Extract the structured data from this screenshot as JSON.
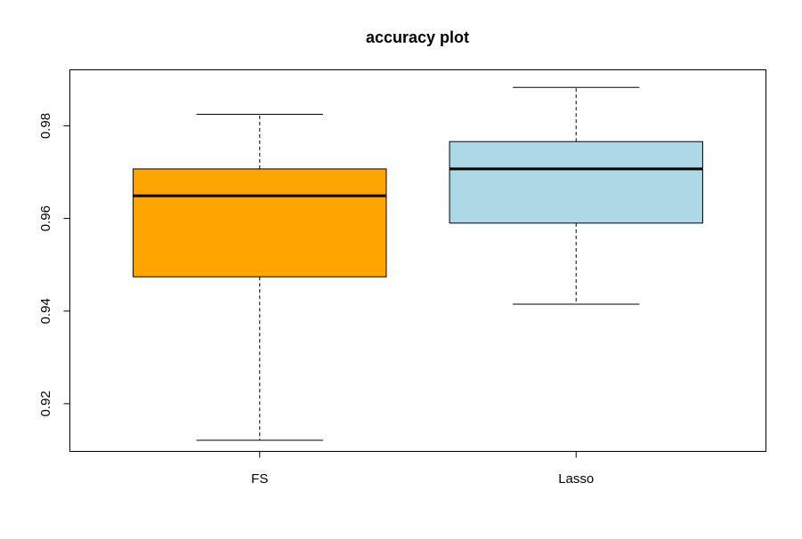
{
  "chart_data": {
    "type": "box",
    "title": "accuracy plot",
    "xlabel": "",
    "ylabel": "",
    "ylim": [
      0.9097,
      0.9921
    ],
    "y_ticks": [
      {
        "value": 0.92,
        "label": "0.92"
      },
      {
        "value": 0.94,
        "label": "0.94"
      },
      {
        "value": 0.96,
        "label": "0.96"
      },
      {
        "value": 0.98,
        "label": "0.98"
      }
    ],
    "categories": [
      "FS",
      "Lasso"
    ],
    "boxes": [
      {
        "name": "FS",
        "color": "#FFA500",
        "whisker_low": 0.9121,
        "q1": 0.9474,
        "median": 0.9649,
        "q3": 0.9707,
        "whisker_high": 0.9825
      },
      {
        "name": "Lasso",
        "color": "#ADD8E6",
        "whisker_low": 0.9415,
        "q1": 0.959,
        "median": 0.9707,
        "q3": 0.9766,
        "whisker_high": 0.9883
      }
    ],
    "grid": false,
    "legend": "none"
  }
}
